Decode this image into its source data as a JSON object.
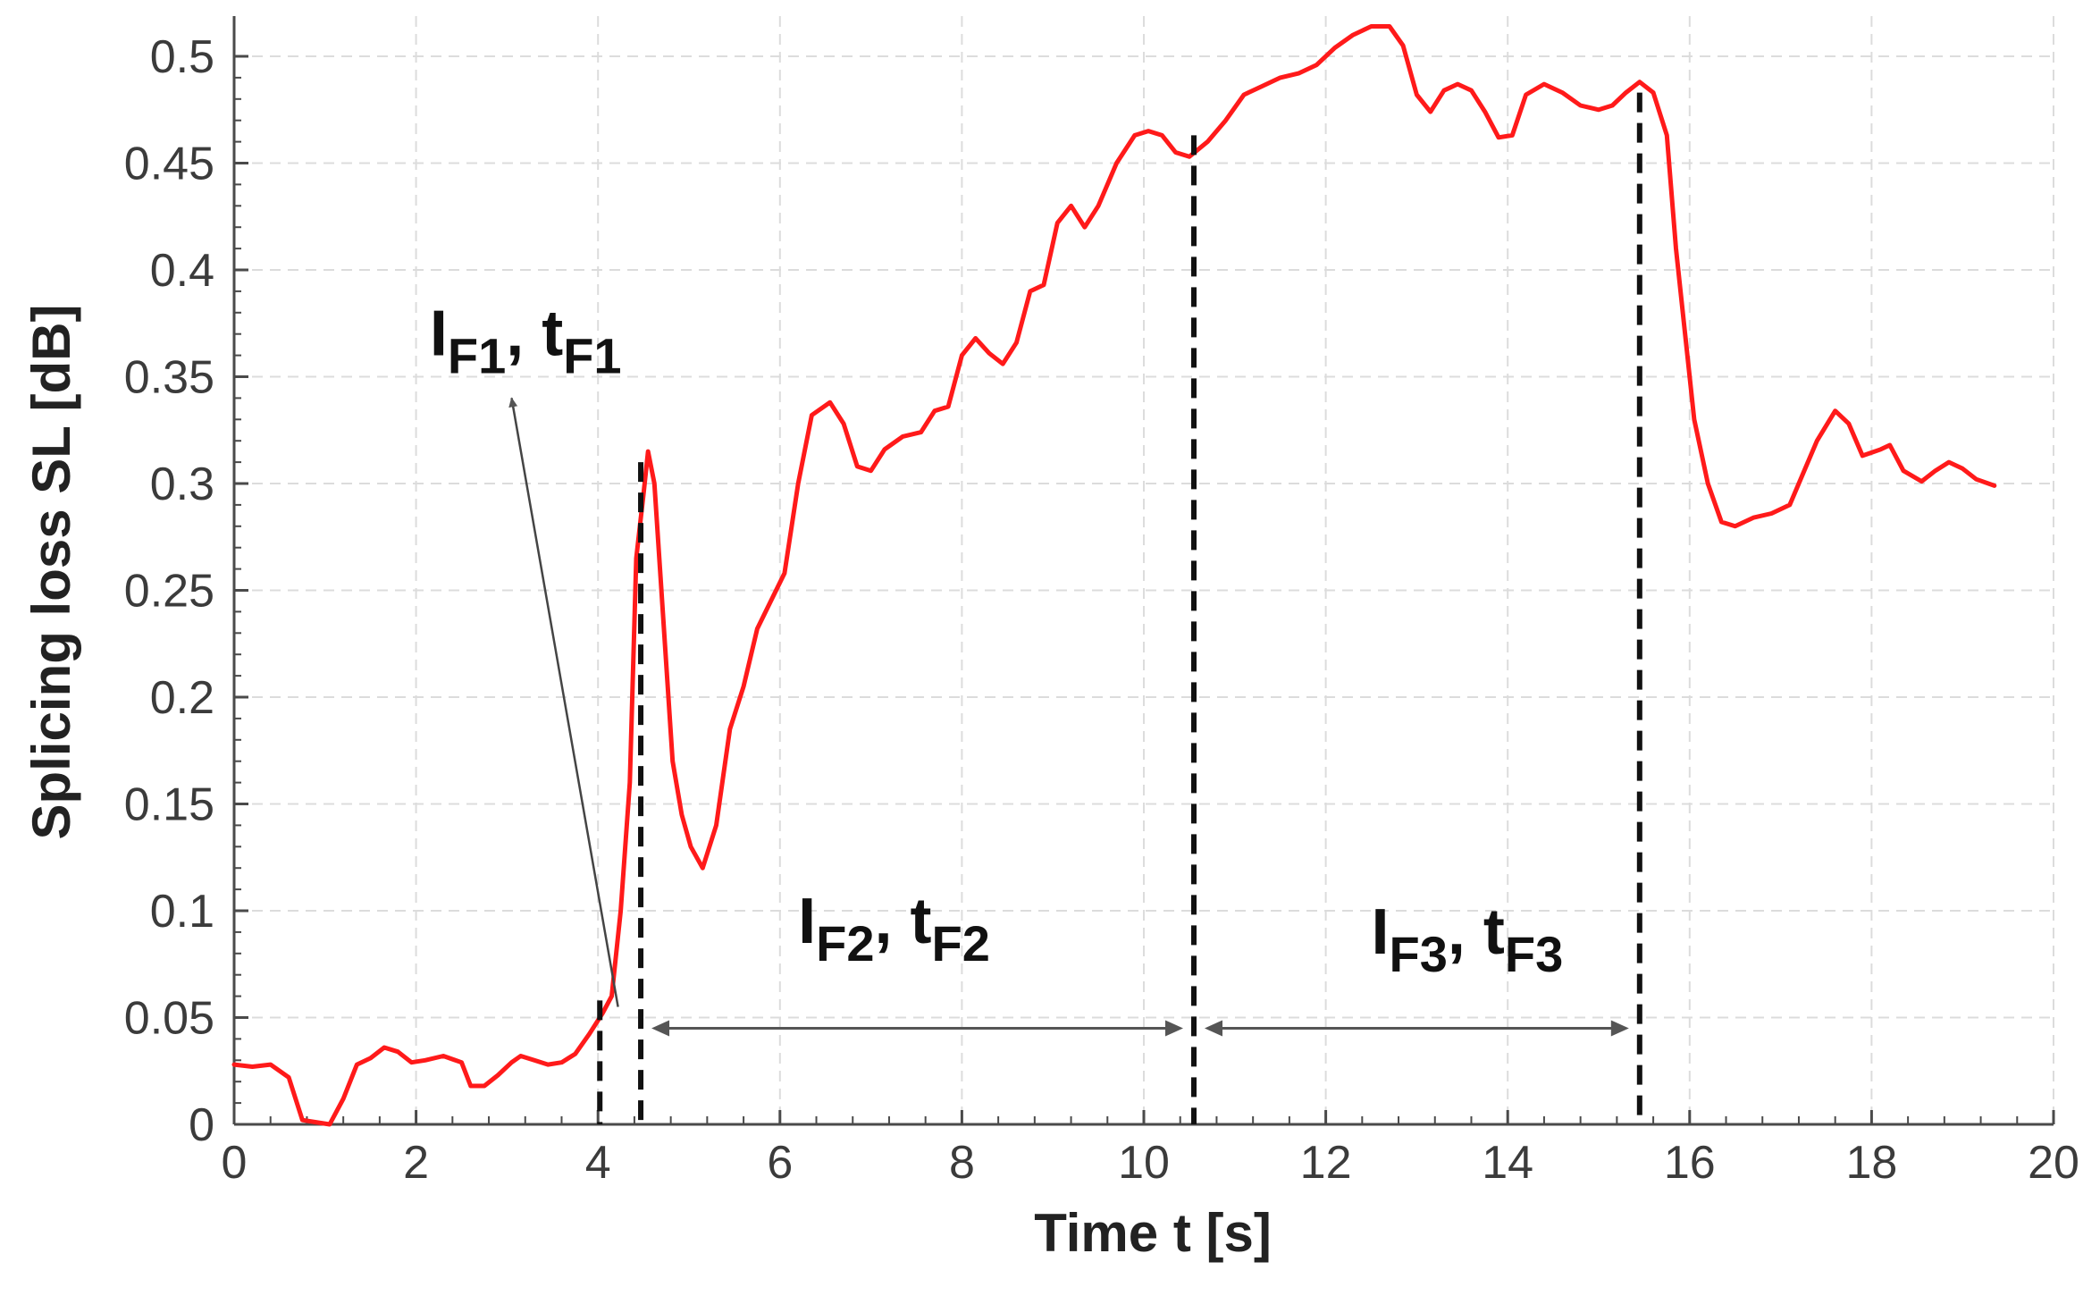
{
  "chart_data": {
    "type": "line",
    "xlabel": "Time t [s]",
    "ylabel": "Splicing loss SL [dB]",
    "xlim": [
      0,
      20
    ],
    "ylim": [
      0,
      0.52
    ],
    "x_ticks": [
      0,
      2,
      4,
      6,
      8,
      10,
      12,
      14,
      16,
      18,
      20
    ],
    "x_tick_labels": [
      "0",
      "2",
      "4",
      "6",
      "8",
      "10",
      "12",
      "14",
      "16",
      "18",
      "20"
    ],
    "y_ticks": [
      0,
      0.05,
      0.1,
      0.15,
      0.2,
      0.25,
      0.3,
      0.35,
      0.4,
      0.45,
      0.5
    ],
    "y_tick_labels": [
      "0",
      "0.05",
      "0.1",
      "0.15",
      "0.2",
      "0.25",
      "0.3",
      "0.35",
      "0.4",
      "0.45",
      "0.5"
    ],
    "grid": true,
    "series": [
      {
        "color": "#ff1a1a",
        "points": [
          [
            0.0,
            0.028
          ],
          [
            0.2,
            0.027
          ],
          [
            0.4,
            0.028
          ],
          [
            0.6,
            0.022
          ],
          [
            0.75,
            0.002
          ],
          [
            0.9,
            0.001
          ],
          [
            1.05,
            0.0
          ],
          [
            1.2,
            0.012
          ],
          [
            1.35,
            0.028
          ],
          [
            1.5,
            0.031
          ],
          [
            1.65,
            0.036
          ],
          [
            1.8,
            0.034
          ],
          [
            1.95,
            0.029
          ],
          [
            2.1,
            0.03
          ],
          [
            2.3,
            0.032
          ],
          [
            2.5,
            0.029
          ],
          [
            2.6,
            0.018
          ],
          [
            2.75,
            0.018
          ],
          [
            2.9,
            0.023
          ],
          [
            3.05,
            0.029
          ],
          [
            3.15,
            0.032
          ],
          [
            3.3,
            0.03
          ],
          [
            3.45,
            0.028
          ],
          [
            3.6,
            0.029
          ],
          [
            3.75,
            0.033
          ],
          [
            3.9,
            0.042
          ],
          [
            4.05,
            0.052
          ],
          [
            4.15,
            0.06
          ],
          [
            4.25,
            0.1
          ],
          [
            4.35,
            0.16
          ],
          [
            4.42,
            0.265
          ],
          [
            4.5,
            0.295
          ],
          [
            4.55,
            0.315
          ],
          [
            4.62,
            0.3
          ],
          [
            4.72,
            0.235
          ],
          [
            4.82,
            0.17
          ],
          [
            4.92,
            0.145
          ],
          [
            5.02,
            0.13
          ],
          [
            5.15,
            0.12
          ],
          [
            5.3,
            0.14
          ],
          [
            5.45,
            0.185
          ],
          [
            5.6,
            0.205
          ],
          [
            5.75,
            0.232
          ],
          [
            5.9,
            0.245
          ],
          [
            6.05,
            0.258
          ],
          [
            6.2,
            0.3
          ],
          [
            6.35,
            0.332
          ],
          [
            6.55,
            0.338
          ],
          [
            6.7,
            0.328
          ],
          [
            6.85,
            0.308
          ],
          [
            7.0,
            0.306
          ],
          [
            7.15,
            0.316
          ],
          [
            7.35,
            0.322
          ],
          [
            7.55,
            0.324
          ],
          [
            7.7,
            0.334
          ],
          [
            7.85,
            0.336
          ],
          [
            8.0,
            0.36
          ],
          [
            8.15,
            0.368
          ],
          [
            8.3,
            0.361
          ],
          [
            8.45,
            0.356
          ],
          [
            8.6,
            0.366
          ],
          [
            8.75,
            0.39
          ],
          [
            8.9,
            0.393
          ],
          [
            9.05,
            0.422
          ],
          [
            9.2,
            0.43
          ],
          [
            9.35,
            0.42
          ],
          [
            9.5,
            0.43
          ],
          [
            9.7,
            0.45
          ],
          [
            9.9,
            0.463
          ],
          [
            10.05,
            0.465
          ],
          [
            10.2,
            0.463
          ],
          [
            10.35,
            0.455
          ],
          [
            10.5,
            0.453
          ],
          [
            10.7,
            0.46
          ],
          [
            10.9,
            0.47
          ],
          [
            11.1,
            0.482
          ],
          [
            11.3,
            0.486
          ],
          [
            11.5,
            0.49
          ],
          [
            11.7,
            0.492
          ],
          [
            11.9,
            0.496
          ],
          [
            12.1,
            0.504
          ],
          [
            12.3,
            0.51
          ],
          [
            12.5,
            0.514
          ],
          [
            12.7,
            0.514
          ],
          [
            12.85,
            0.505
          ],
          [
            13.0,
            0.482
          ],
          [
            13.15,
            0.474
          ],
          [
            13.3,
            0.484
          ],
          [
            13.45,
            0.487
          ],
          [
            13.6,
            0.484
          ],
          [
            13.75,
            0.474
          ],
          [
            13.9,
            0.462
          ],
          [
            14.05,
            0.463
          ],
          [
            14.2,
            0.482
          ],
          [
            14.4,
            0.487
          ],
          [
            14.6,
            0.483
          ],
          [
            14.8,
            0.477
          ],
          [
            15.0,
            0.475
          ],
          [
            15.15,
            0.477
          ],
          [
            15.3,
            0.483
          ],
          [
            15.45,
            0.488
          ],
          [
            15.6,
            0.483
          ],
          [
            15.75,
            0.463
          ],
          [
            15.85,
            0.41
          ],
          [
            15.95,
            0.37
          ],
          [
            16.05,
            0.33
          ],
          [
            16.2,
            0.3
          ],
          [
            16.35,
            0.282
          ],
          [
            16.5,
            0.28
          ],
          [
            16.7,
            0.284
          ],
          [
            16.9,
            0.286
          ],
          [
            17.1,
            0.29
          ],
          [
            17.25,
            0.305
          ],
          [
            17.4,
            0.32
          ],
          [
            17.6,
            0.334
          ],
          [
            17.75,
            0.328
          ],
          [
            17.9,
            0.313
          ],
          [
            18.1,
            0.316
          ],
          [
            18.2,
            0.318
          ],
          [
            18.35,
            0.306
          ],
          [
            18.55,
            0.301
          ],
          [
            18.7,
            0.306
          ],
          [
            18.85,
            0.31
          ],
          [
            19.0,
            0.307
          ],
          [
            19.15,
            0.302
          ],
          [
            19.35,
            0.299
          ]
        ]
      }
    ],
    "markers": [
      {
        "x": 4.02,
        "y_top": 0.058
      },
      {
        "x": 4.47,
        "y_top": 0.31
      },
      {
        "x": 10.55,
        "y_top": 0.463
      },
      {
        "x": 15.45,
        "y_top": 0.483
      }
    ],
    "annotations": [
      {
        "main": "I",
        "sub1": "F1",
        "sep": ", t",
        "sub2": "F1",
        "x": 2.15,
        "y": 0.36
      },
      {
        "main": "I",
        "sub1": "F2",
        "sep": ", t",
        "sub2": "F2",
        "x": 6.2,
        "y": 0.085
      },
      {
        "main": "I",
        "sub1": "F3",
        "sep": ", t",
        "sub2": "F3",
        "x": 12.5,
        "y": 0.08
      }
    ],
    "intervals": [
      {
        "x1": 4.47,
        "x2": 10.55,
        "y": 0.045,
        "label_index": 1
      },
      {
        "x1": 10.55,
        "x2": 15.45,
        "y": 0.045,
        "label_index": 2
      }
    ],
    "pointer_arrow": {
      "from": [
        4.22,
        0.055
      ],
      "to": [
        3.05,
        0.34
      ]
    }
  }
}
